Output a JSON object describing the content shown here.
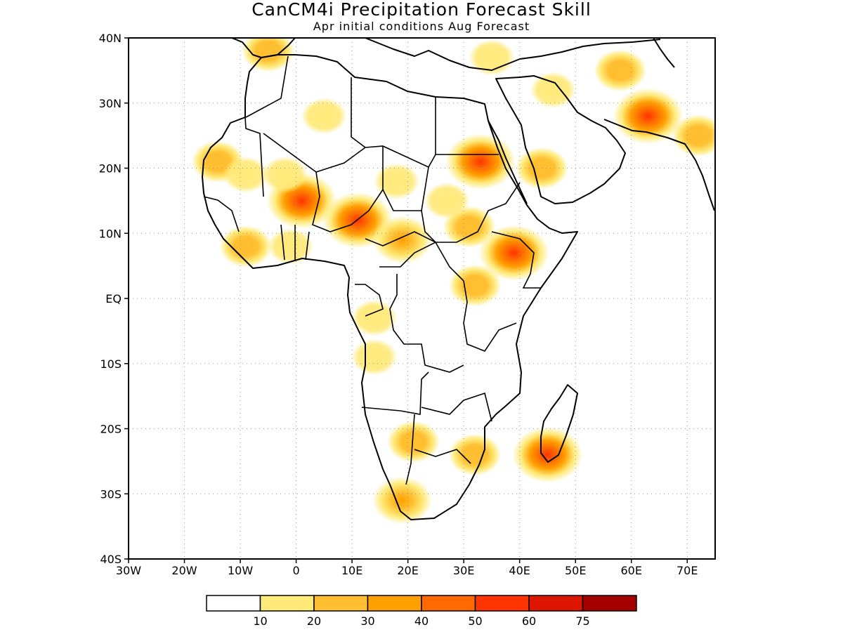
{
  "title": "CanCM4i Precipitation Forecast Skill",
  "subtitle": "Apr initial conditions   Aug Forecast",
  "map": {
    "lon_range": [
      -30,
      75
    ],
    "lat_range": [
      -40,
      40
    ],
    "lat_labels": [
      "40N",
      "30N",
      "20N",
      "10N",
      "EQ",
      "10S",
      "20S",
      "30S",
      "40S"
    ],
    "lon_labels": [
      "30W",
      "20W",
      "10W",
      "0",
      "10E",
      "20E",
      "30E",
      "40E",
      "50E",
      "60E",
      "70E"
    ],
    "grid": "dotted",
    "skill_patches": [
      {
        "region": "Mauritania coast",
        "lon": -14,
        "lat": 21,
        "level": 2
      },
      {
        "region": "Mauritania",
        "lon": -9,
        "lat": 19,
        "level": 1
      },
      {
        "region": "Mali/Niger border",
        "lon": 1,
        "lat": 15,
        "level": 4
      },
      {
        "region": "Mali",
        "lon": -2,
        "lat": 19,
        "level": 1
      },
      {
        "region": "Niger/Nigeria",
        "lon": 11,
        "lat": 12,
        "level": 4
      },
      {
        "region": "Chad/CAR",
        "lon": 19,
        "lat": 9,
        "level": 3
      },
      {
        "region": "Chad",
        "lon": 18,
        "lat": 18,
        "level": 1
      },
      {
        "region": "Sudan",
        "lon": 33,
        "lat": 21,
        "level": 4
      },
      {
        "region": "Sudan south",
        "lon": 27,
        "lat": 15,
        "level": 1
      },
      {
        "region": "Ethiopia/Somalia",
        "lon": 39,
        "lat": 7,
        "level": 4
      },
      {
        "region": "South Sudan",
        "lon": 31,
        "lat": 11,
        "level": 2
      },
      {
        "region": "Saudi Arabia",
        "lon": 44,
        "lat": 20,
        "level": 2
      },
      {
        "region": "West Africa coast",
        "lon": -9,
        "lat": 8,
        "level": 2
      },
      {
        "region": "Ghana/Togo",
        "lon": -1,
        "lat": 8,
        "level": 1
      },
      {
        "region": "Uganda",
        "lon": 32,
        "lat": 2,
        "level": 2
      },
      {
        "region": "Congo",
        "lon": 14,
        "lat": -3,
        "level": 1
      },
      {
        "region": "Angola",
        "lon": 14,
        "lat": -9,
        "level": 1
      },
      {
        "region": "Botswana",
        "lon": 21,
        "lat": -22,
        "level": 2
      },
      {
        "region": "Mozambique",
        "lon": 32,
        "lat": -24,
        "level": 2
      },
      {
        "region": "South Africa west",
        "lon": 19,
        "lat": -31,
        "level": 3
      },
      {
        "region": "Madagascar",
        "lon": 45,
        "lat": -24,
        "level": 4
      },
      {
        "region": "Iran",
        "lon": 58,
        "lat": 35,
        "level": 2
      },
      {
        "region": "Pakistan",
        "lon": 63,
        "lat": 28,
        "level": 4
      },
      {
        "region": "India west",
        "lon": 72,
        "lat": 25,
        "level": 2
      },
      {
        "region": "Morocco",
        "lon": -5,
        "lat": 38,
        "level": 2
      },
      {
        "region": "Turkey",
        "lon": 35,
        "lat": 37,
        "level": 1
      },
      {
        "region": "Iraq",
        "lon": 46,
        "lat": 32,
        "level": 1
      },
      {
        "region": "Algeria",
        "lon": 5,
        "lat": 28,
        "level": 1
      }
    ]
  },
  "colorbar": {
    "colors": [
      "#ffffff",
      "#ffe978",
      "#ffbf30",
      "#ff9f00",
      "#ff6a00",
      "#ff3400",
      "#de1600",
      "#a50000"
    ],
    "labels": [
      "10",
      "20",
      "30",
      "40",
      "50",
      "60",
      "75"
    ]
  }
}
